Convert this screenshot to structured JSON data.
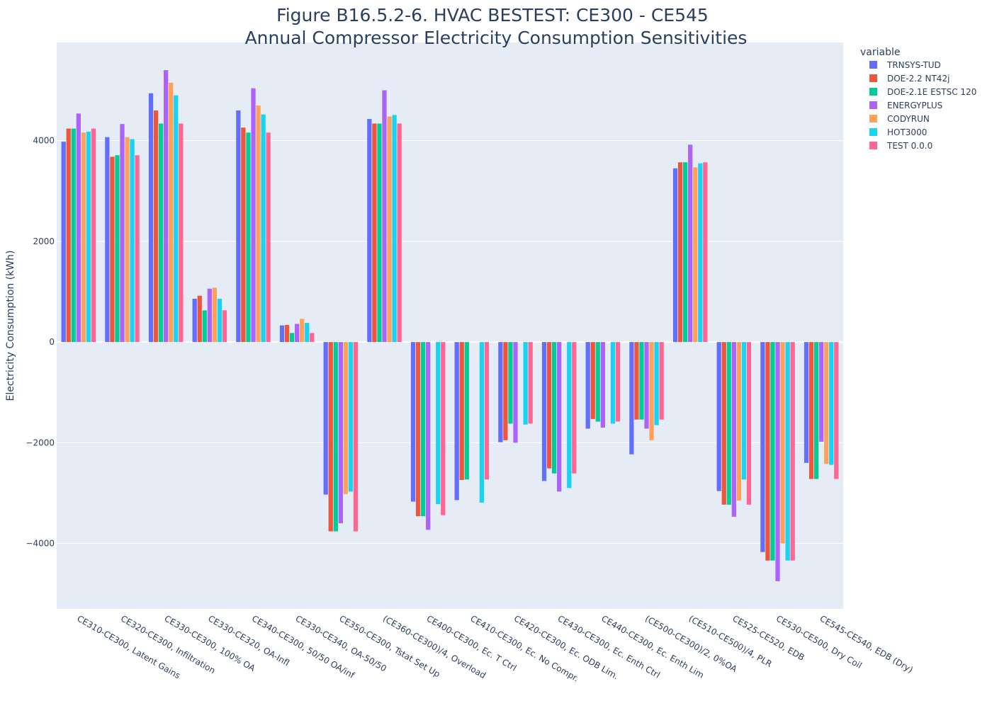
{
  "chart_data": {
    "type": "bar",
    "title_line1": "Figure B16.5.2-6. HVAC BESTEST: CE300 - CE545",
    "title_line2": "Annual Compressor Electricity Consumption Sensitivities",
    "ylabel": "Electricity Consumption (kWh)",
    "xlabel": "",
    "ylim": [
      -5300,
      5950
    ],
    "yticks": [
      -4000,
      -2000,
      0,
      2000,
      4000
    ],
    "ytick_labels": [
      "−4000",
      "−2000",
      "0",
      "2000",
      "4000"
    ],
    "grid": true,
    "legend": {
      "title": "variable",
      "placement": "right"
    },
    "categories": [
      "CE310-CE300, Latent Gains",
      "CE320-CE300, Infiltration",
      "CE330-CE300, 100% OA",
      "CE330-CE320, OA-Infl",
      "CE340-CE300, 50/50 OA/inf",
      "CE330-CE340, OA-50/50",
      "CE350-CE300, Tstat Set Up",
      "(CE360-CE300)/4, Overload",
      "CE400-CE300, Ec. T Ctrl",
      "CE410-CE300, Ec. No Compr.",
      "CE420-CE300, Ec. ODB Lim.",
      "CE430-CE300, Ec. Enth Ctrl",
      "CE440-CE300, Ec. Enth Lim",
      "(CE500-CE300)/2, 0%OA",
      "(CE510-CE500)/4, PLR",
      "CE525-CE520, EDB",
      "CE530-CE500, Dry Coil",
      "CE545-CE540, EDB (Dry)"
    ],
    "series": [
      {
        "name": "TRNSYS-TUD",
        "color": "#636efa",
        "values": [
          3980,
          4070,
          4940,
          860,
          4600,
          330,
          -3030,
          4430,
          -3170,
          -3140,
          -1990,
          -2760,
          -1720,
          -2230,
          3450,
          -2960,
          -4170,
          -2400
        ]
      },
      {
        "name": "DOE-2.2 NT42j",
        "color": "#ef553b",
        "values": [
          4240,
          3680,
          4600,
          920,
          4260,
          340,
          -3760,
          4340,
          -3460,
          -2740,
          -1950,
          -2510,
          -1530,
          -1540,
          3570,
          -3230,
          -4340,
          -2720
        ]
      },
      {
        "name": "DOE-2.1E ESTSC 120",
        "color": "#00cc96",
        "values": [
          4240,
          3710,
          4340,
          630,
          4160,
          180,
          -3760,
          4340,
          -3460,
          -2730,
          -1620,
          -2610,
          -1580,
          -1540,
          3570,
          -3230,
          -4340,
          -2720
        ]
      },
      {
        "name": "ENERGYPLUS",
        "color": "#ab63fa",
        "values": [
          4540,
          4330,
          5400,
          1060,
          5040,
          360,
          -3600,
          5000,
          -3730,
          0,
          -2000,
          -2970,
          -1700,
          -1720,
          3920,
          -3470,
          -4750,
          -1980
        ]
      },
      {
        "name": "CODYRUN",
        "color": "#ffa15a",
        "values": [
          4160,
          4070,
          5150,
          1080,
          4700,
          460,
          -3020,
          4480,
          0,
          0,
          0,
          0,
          0,
          -1950,
          3470,
          -3150,
          -4000,
          -2420
        ]
      },
      {
        "name": "HOT3000",
        "color": "#19d3f3",
        "values": [
          4180,
          4030,
          4900,
          860,
          4520,
          380,
          -2970,
          4510,
          -3220,
          -3190,
          -1640,
          -2900,
          -1620,
          -1650,
          3550,
          -2730,
          -4340,
          -2440
        ]
      },
      {
        "name": "TEST 0.0.0",
        "color": "#ff6692",
        "values": [
          4240,
          3710,
          4340,
          630,
          4160,
          180,
          -3760,
          4340,
          -3440,
          -2730,
          -1620,
          -2610,
          -1580,
          -1540,
          3570,
          -3230,
          -4340,
          -2720
        ]
      }
    ]
  }
}
